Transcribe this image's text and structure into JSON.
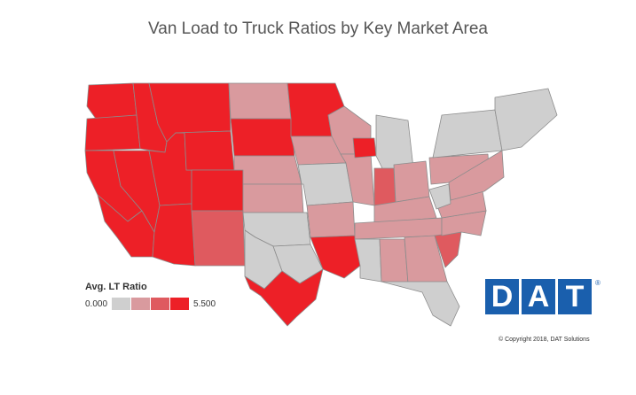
{
  "title": "Van Load to Truck Ratios by Key Market Area",
  "legend": {
    "title": "Avg. LT Ratio",
    "min_label": "0.000",
    "max_label": "5.500",
    "colors": [
      "#cfcfcf",
      "#d99a9e",
      "#df5a5f",
      "#ed2027"
    ]
  },
  "logo": {
    "letters": [
      "D",
      "A",
      "T"
    ],
    "registered_mark": "®",
    "color": "#1a5fad"
  },
  "copyright": "© Copyright 2018, DAT Solutions",
  "map": {
    "region": "Contiguous United States",
    "stroke_color": "#8c8c8c",
    "areas": [
      {
        "name": "washington",
        "level": 3
      },
      {
        "name": "oregon",
        "level": 3
      },
      {
        "name": "california-north",
        "level": 3
      },
      {
        "name": "california-south",
        "level": 3
      },
      {
        "name": "nevada",
        "level": 3
      },
      {
        "name": "idaho",
        "level": 3
      },
      {
        "name": "montana",
        "level": 3
      },
      {
        "name": "utah",
        "level": 3
      },
      {
        "name": "arizona",
        "level": 3
      },
      {
        "name": "wyoming",
        "level": 3
      },
      {
        "name": "colorado",
        "level": 3
      },
      {
        "name": "new-mexico",
        "level": 2
      },
      {
        "name": "north-dakota",
        "level": 1
      },
      {
        "name": "south-dakota",
        "level": 3
      },
      {
        "name": "nebraska",
        "level": 1
      },
      {
        "name": "kansas",
        "level": 1
      },
      {
        "name": "oklahoma",
        "level": 0
      },
      {
        "name": "texas-west",
        "level": 0
      },
      {
        "name": "texas-central",
        "level": 0
      },
      {
        "name": "texas-south",
        "level": 3
      },
      {
        "name": "minnesota",
        "level": 3
      },
      {
        "name": "iowa",
        "level": 1
      },
      {
        "name": "missouri",
        "level": 0
      },
      {
        "name": "arkansas",
        "level": 1
      },
      {
        "name": "louisiana",
        "level": 3
      },
      {
        "name": "wisconsin",
        "level": 1
      },
      {
        "name": "illinois",
        "level": 1
      },
      {
        "name": "chicago",
        "level": 3
      },
      {
        "name": "michigan",
        "level": 0
      },
      {
        "name": "indiana",
        "level": 2
      },
      {
        "name": "ohio",
        "level": 1
      },
      {
        "name": "kentucky",
        "level": 1
      },
      {
        "name": "tennessee",
        "level": 1
      },
      {
        "name": "mississippi",
        "level": 0
      },
      {
        "name": "alabama",
        "level": 1
      },
      {
        "name": "georgia",
        "level": 1
      },
      {
        "name": "florida",
        "level": 0
      },
      {
        "name": "south-carolina",
        "level": 2
      },
      {
        "name": "north-carolina",
        "level": 1
      },
      {
        "name": "virginia",
        "level": 1
      },
      {
        "name": "west-virginia",
        "level": 0
      },
      {
        "name": "pennsylvania",
        "level": 1
      },
      {
        "name": "new-york",
        "level": 0
      },
      {
        "name": "new-england",
        "level": 0
      },
      {
        "name": "maryland-nj",
        "level": 1
      }
    ]
  }
}
